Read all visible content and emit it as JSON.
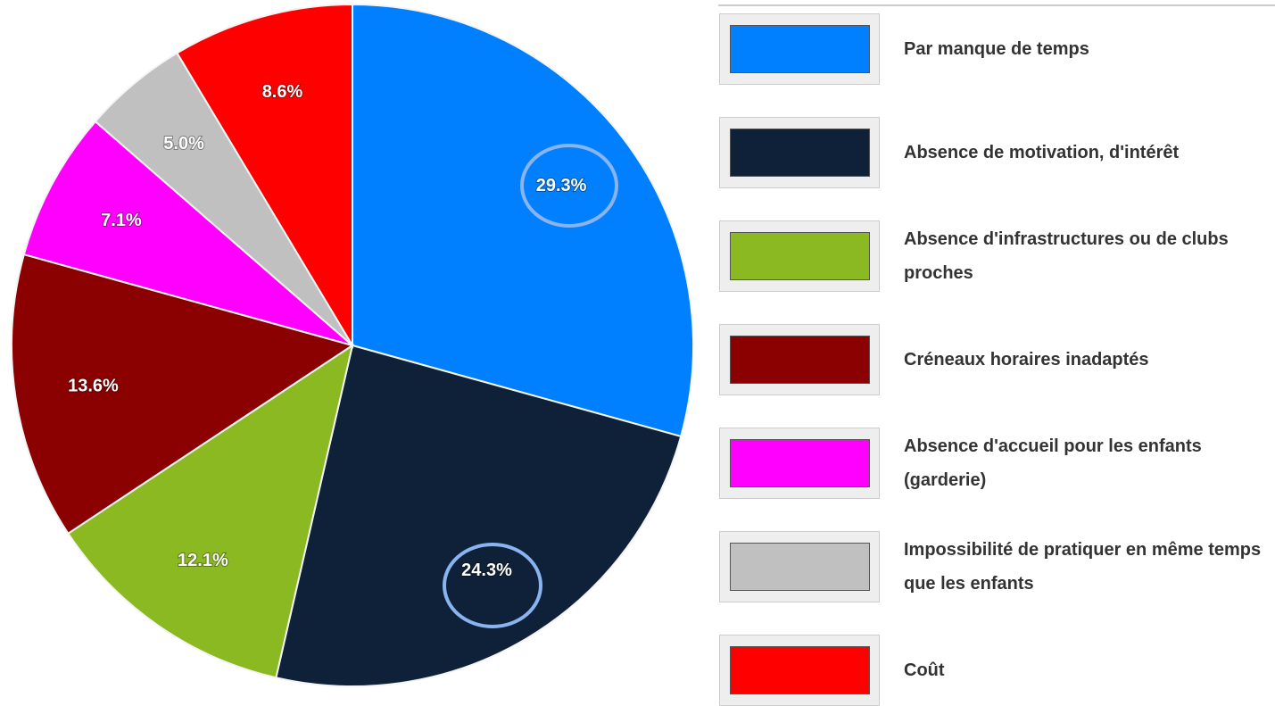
{
  "chart_data": {
    "type": "pie",
    "categories": [
      "Par manque de temps",
      "Absence de motivation, d'intérêt",
      "Absence d'infrastructures ou de clubs proches",
      "Créneaux horaires inadaptés",
      "Absence d'accueil pour les enfants (garderie)",
      "Impossibilité de pratiquer en même temps que les enfants",
      "Coût"
    ],
    "values": [
      29.3,
      24.3,
      12.1,
      13.6,
      7.1,
      5.0,
      8.6
    ],
    "value_labels": [
      "29.3%",
      "24.3%",
      "12.1%",
      "13.6%",
      "7.1%",
      "5.0%",
      "8.6%"
    ],
    "colors": [
      "#0080ff",
      "#0f2139",
      "#8ab922",
      "#8b0000",
      "#ff00ff",
      "#c0c0c0",
      "#ff0000"
    ],
    "legend": "right"
  }
}
